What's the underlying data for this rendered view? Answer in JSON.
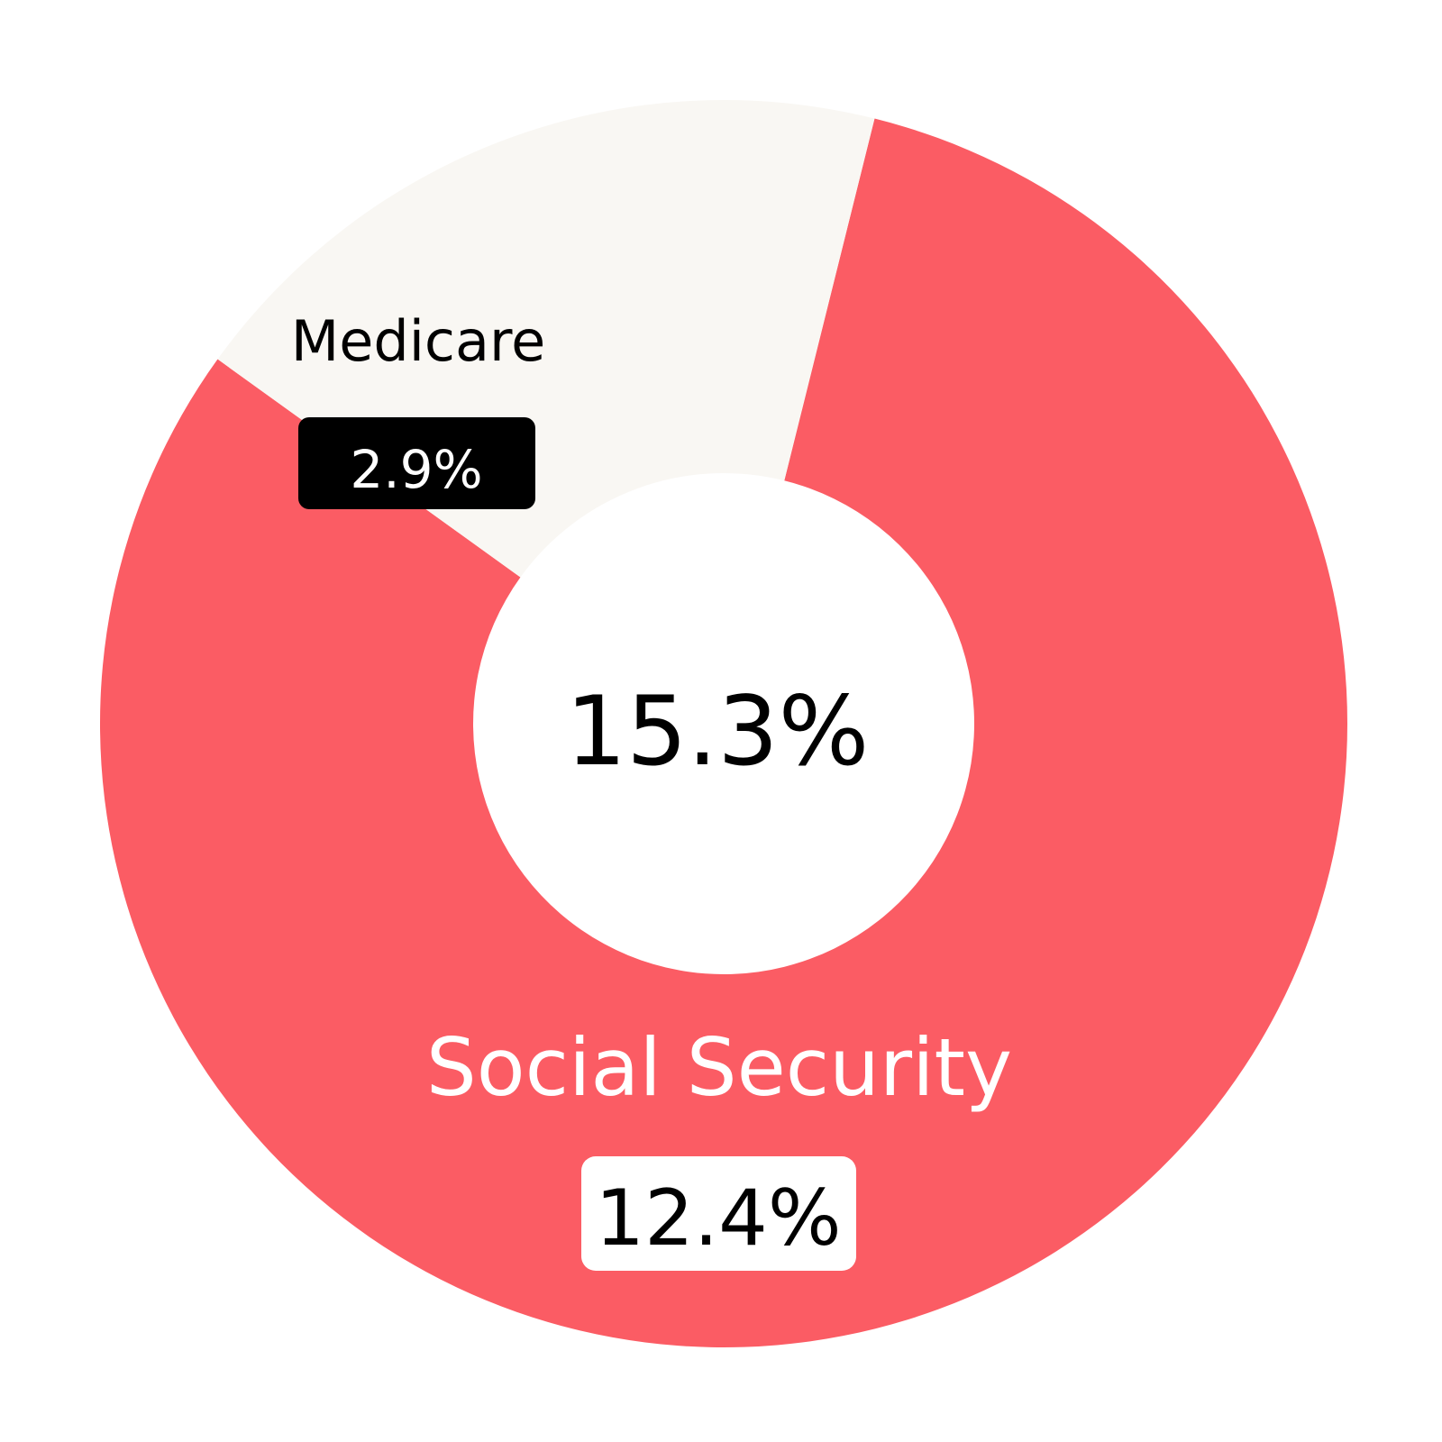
{
  "colors": {
    "social_security": "#FB5C64",
    "medicare": "#F9F7F3",
    "background": "#FFFFFF",
    "center_text": "#000000",
    "medicare_badge_bg": "#000000",
    "medicare_badge_text": "#FFFFFF",
    "social_badge_bg": "#FFFFFF",
    "social_badge_text": "#000000",
    "medicare_label": "#000000",
    "social_label": "#FFFFFF"
  },
  "chart_data": {
    "type": "pie",
    "variant": "donut",
    "total_label": "15.3%",
    "slices": [
      {
        "name": "Social Security",
        "value": 12.4,
        "value_label": "12.4%"
      },
      {
        "name": "Medicare",
        "value": 2.9,
        "value_label": "2.9%"
      }
    ]
  }
}
